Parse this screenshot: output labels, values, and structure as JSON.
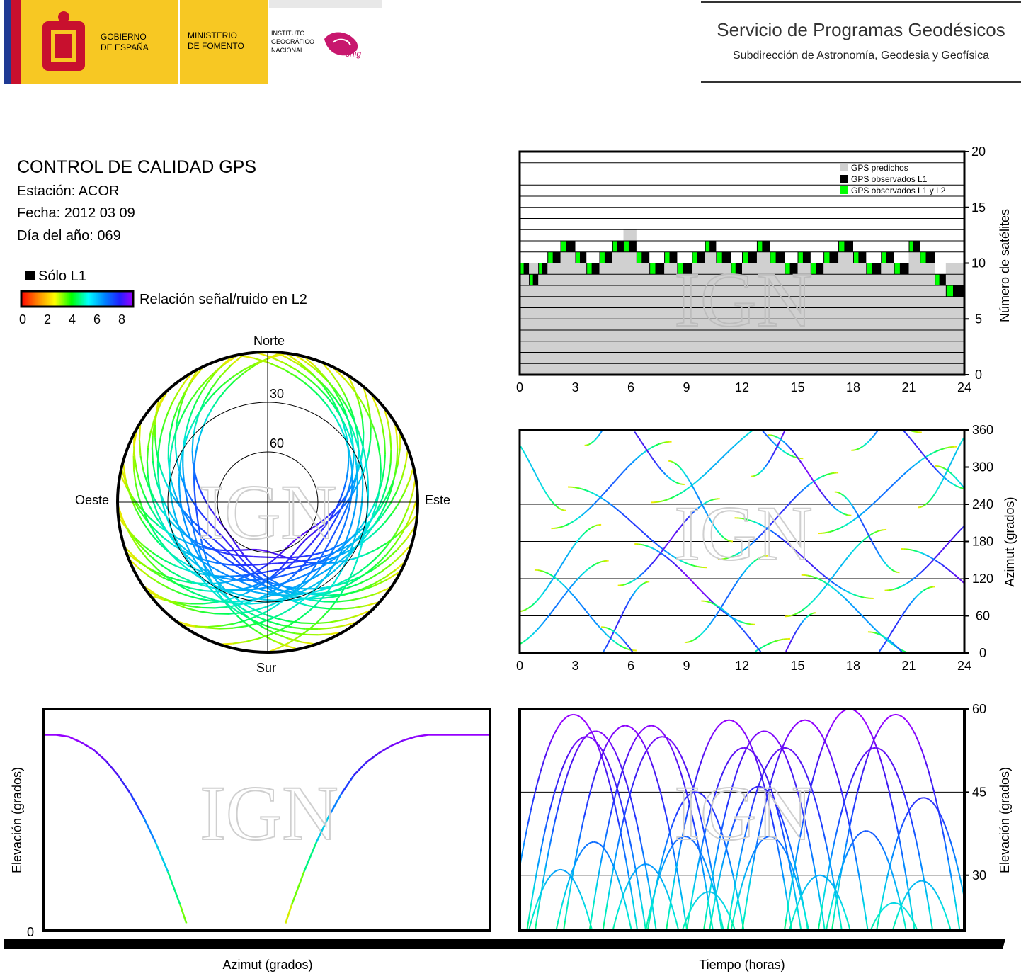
{
  "header": {
    "gov_line1": "GOBIERNO",
    "gov_line2": "DE ESPAÑA",
    "ministry_line1": "MINISTERIO",
    "ministry_line2": "DE FOMENTO",
    "inst_line1": "INSTITUTO",
    "inst_line2": "GEOGRÁFICO",
    "inst_line3": "NACIONAL",
    "cnig": "cnig",
    "service_title": "Servicio de Programas Geodésicos",
    "service_subtitle": "Subdirección de Astronomía, Geodesia y Geofísica",
    "colors": {
      "yellow": "#f7c823",
      "red": "#c8102e",
      "blue_bar": "#1f3a93"
    }
  },
  "info": {
    "title": "CONTROL DE CALIDAD GPS",
    "station": "Estación: ACOR",
    "date": "Fecha: 2012 03 09",
    "doy": "Día del año: 069",
    "legend_l1": "Sólo L1",
    "legend_snr": "Relación señal/ruido en L2",
    "colorbar_ticks": [
      "0",
      "2",
      "4",
      "6",
      "8"
    ]
  },
  "watermark": "IGN",
  "chart_data": [
    {
      "type": "scatter",
      "name": "skyplot",
      "polar": true,
      "directions": {
        "north": "Norte",
        "south": "Sur",
        "east": "Este",
        "west": "Oeste"
      },
      "elevation_rings": [
        "30",
        "60"
      ],
      "color_scale": "SNR L2 0–8",
      "satellites_az_range_note": "tracks span full sky except northern hole near 330°–30°"
    },
    {
      "type": "area",
      "name": "satellite-count",
      "xlabel": "",
      "ylabel": "Número de satélites",
      "x_ticks": [
        "0",
        "3",
        "6",
        "9",
        "12",
        "15",
        "18",
        "21",
        "24"
      ],
      "y_ticks": [
        "0",
        "5",
        "10",
        "15",
        "20"
      ],
      "xlim": [
        0,
        24
      ],
      "ylim": [
        0,
        20
      ],
      "legend": [
        "GPS predichos",
        "GPS observados L1",
        "GPS observados L1 y L2"
      ],
      "legend_colors": [
        "#d0d0d0",
        "#000000",
        "#00ff00"
      ],
      "predicted_x": [
        0,
        1,
        1.5,
        2.2,
        3,
        3.6,
        4.3,
        5,
        5.6,
        6.3,
        7,
        7.8,
        8.5,
        9.3,
        10,
        10.6,
        11.4,
        12,
        12.8,
        13.5,
        14.3,
        15,
        15.7,
        16.4,
        17.2,
        18,
        18.7,
        19.5,
        20.2,
        21,
        21.6,
        22.4,
        23,
        24
      ],
      "predicted_y": [
        10,
        10,
        11,
        12,
        11,
        10,
        11,
        12,
        13,
        11,
        10,
        11,
        10,
        11,
        12,
        11,
        10,
        11,
        12,
        11,
        10,
        11,
        10,
        11,
        12,
        11,
        10,
        11,
        10,
        12,
        11,
        9,
        10,
        10
      ],
      "observed_x": [
        0,
        0.5,
        1,
        1.5,
        2.2,
        3,
        3.6,
        4.3,
        5,
        5.6,
        6.3,
        7,
        7.8,
        8.5,
        9.3,
        10,
        10.6,
        11.4,
        12,
        12.8,
        13.5,
        14.3,
        15,
        15.7,
        16.4,
        17.2,
        18,
        18.7,
        19.5,
        20.2,
        21,
        21.6,
        22.4,
        23,
        24
      ],
      "observed_y": [
        9,
        8,
        9,
        10,
        11,
        10,
        9,
        10,
        11,
        11,
        10,
        9,
        10,
        9,
        10,
        11,
        10,
        9,
        10,
        11,
        10,
        9,
        10,
        9,
        10,
        11,
        10,
        9,
        10,
        9,
        11,
        10,
        8,
        7,
        9
      ]
    },
    {
      "type": "scatter",
      "name": "azimuth-vs-time",
      "ylabel": "Azimut (grados)",
      "x_ticks": [
        "0",
        "3",
        "6",
        "9",
        "12",
        "15",
        "18",
        "21",
        "24"
      ],
      "y_ticks": [
        "0",
        "60",
        "120",
        "180",
        "240",
        "300",
        "360"
      ],
      "xlim": [
        0,
        24
      ],
      "ylim": [
        0,
        360
      ]
    },
    {
      "type": "line",
      "name": "elevation-vs-azimuth",
      "xlabel": "Azimut (grados)",
      "ylabel": "Elevación (grados)",
      "y_ticks": [
        "0"
      ],
      "ylim": [
        0,
        60
      ],
      "series": [
        {
          "az": [
            0,
            10,
            20,
            30,
            40,
            50,
            60,
            70,
            80,
            90,
            100,
            110,
            115
          ],
          "el": [
            53,
            53,
            52.5,
            51,
            49,
            46,
            42,
            37,
            31,
            24,
            16,
            7,
            2
          ]
        },
        {
          "az": [
            195,
            200,
            210,
            220,
            230,
            240,
            250,
            260,
            270,
            280,
            290,
            300,
            310,
            320,
            330,
            340,
            350,
            360
          ],
          "el": [
            2,
            7,
            16,
            24,
            31,
            37,
            42,
            45.5,
            48,
            50,
            51.5,
            52.5,
            53,
            53,
            53,
            53,
            53,
            53
          ]
        }
      ]
    },
    {
      "type": "line",
      "name": "elevation-vs-time",
      "xlabel": "Tiempo (horas)",
      "ylabel": "Elevación (grados)",
      "y_ticks": [
        "30",
        "45",
        "60"
      ],
      "ylim": [
        20,
        60
      ],
      "xlim": [
        0,
        24
      ],
      "peaks": [
        {
          "t": 2.9,
          "el": 59
        },
        {
          "t": 3.6,
          "el": 55
        },
        {
          "t": 4.1,
          "el": 56
        },
        {
          "t": 5.7,
          "el": 57
        },
        {
          "t": 7.1,
          "el": 57
        },
        {
          "t": 7.7,
          "el": 55
        },
        {
          "t": 9.5,
          "el": 45
        },
        {
          "t": 11.3,
          "el": 58
        },
        {
          "t": 12.1,
          "el": 53
        },
        {
          "t": 13.2,
          "el": 56
        },
        {
          "t": 12.9,
          "el": 46
        },
        {
          "t": 14.3,
          "el": 53
        },
        {
          "t": 15.4,
          "el": 58
        },
        {
          "t": 17.8,
          "el": 60
        },
        {
          "t": 19.2,
          "el": 53
        },
        {
          "t": 20.3,
          "el": 59
        },
        {
          "t": 21.8,
          "el": 44
        },
        {
          "t": 2.2,
          "el": 31
        },
        {
          "t": 4.0,
          "el": 36
        },
        {
          "t": 6.8,
          "el": 32
        },
        {
          "t": 8.9,
          "el": 37
        },
        {
          "t": 10.2,
          "el": 27
        },
        {
          "t": 13.5,
          "el": 37
        },
        {
          "t": 16.2,
          "el": 30
        },
        {
          "t": 18.7,
          "el": 38
        },
        {
          "t": 21.7,
          "el": 29
        },
        {
          "t": 20.2,
          "el": 25
        }
      ]
    }
  ]
}
